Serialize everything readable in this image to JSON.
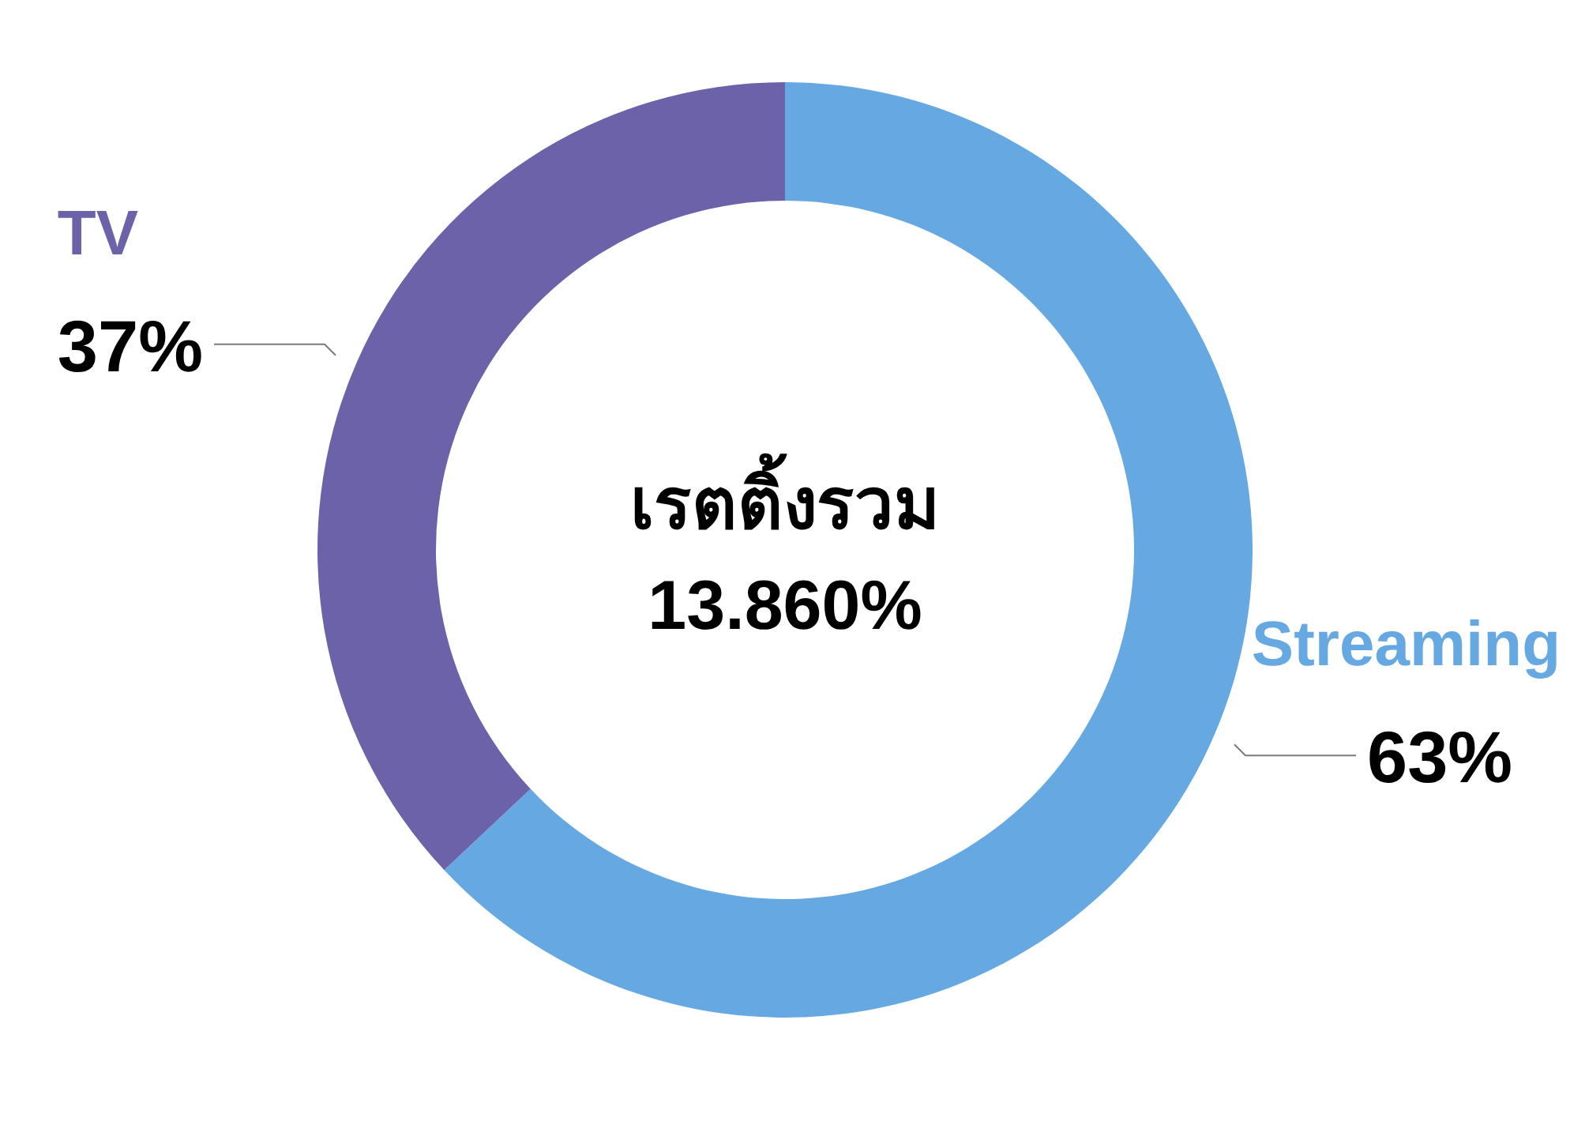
{
  "chart_data": {
    "type": "donut",
    "title": "เรตติ้งรวม",
    "annotations": [
      "13.860%"
    ],
    "categories": [
      "Streaming",
      "TV"
    ],
    "values": [
      63,
      37
    ],
    "colors": [
      "#66a8e2",
      "#6b62a9"
    ],
    "value_labels": [
      "63%",
      "37%"
    ]
  }
}
